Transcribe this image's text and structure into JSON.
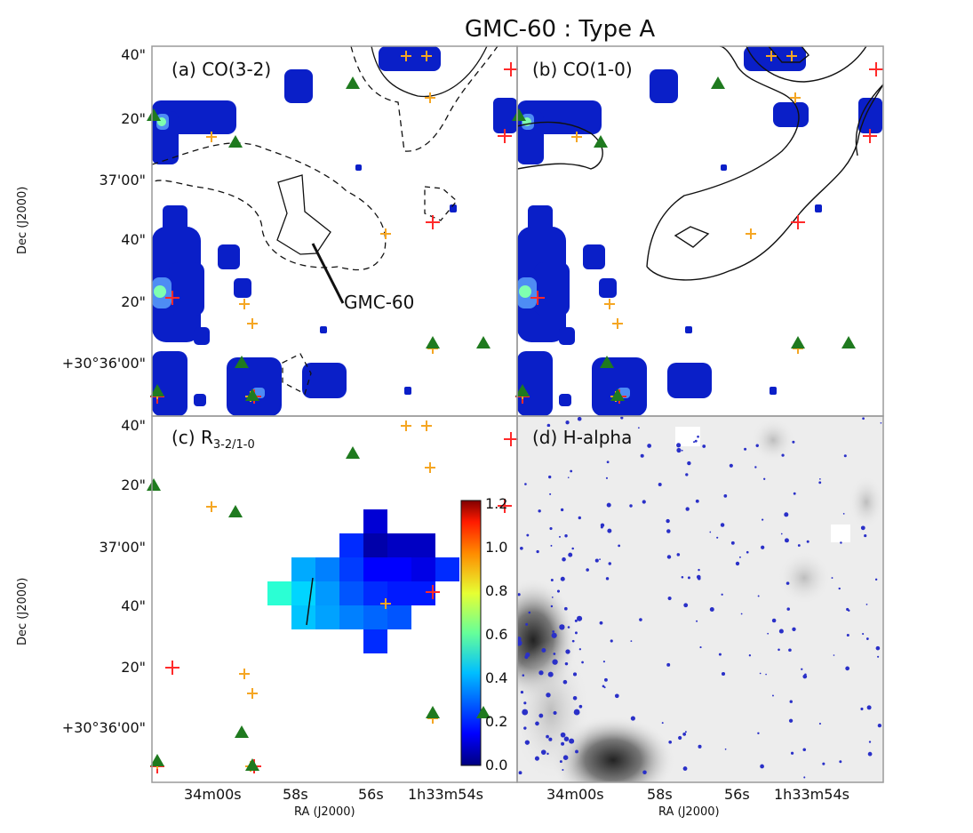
{
  "figure": {
    "title": "GMC-60 : Type A",
    "y_axis_label": "Dec (J2000)",
    "x_axis_label": "RA (J2000)",
    "y_ticks": [
      "40\"",
      "20\"",
      "37'00\"",
      "40\"",
      "20\"",
      "+30°36'00\""
    ],
    "x_ticks": [
      "34m00s",
      "58s",
      "56s",
      "1h33m54s"
    ]
  },
  "panels": [
    {
      "id": "a",
      "prefix": "(a) ",
      "label": "CO(3-2)",
      "sub": ""
    },
    {
      "id": "b",
      "prefix": "(b) ",
      "label": "CO(1-0)",
      "sub": ""
    },
    {
      "id": "c",
      "prefix": "(c) ",
      "label": "R",
      "sub": "3-2/1-0"
    },
    {
      "id": "d",
      "prefix": "(d) ",
      "label": "H-alpha",
      "sub": ""
    }
  ],
  "annotation": {
    "label": "GMC-60"
  },
  "colorbar": {
    "ticks": [
      "1.2",
      "1.0",
      "0.8",
      "0.6",
      "0.4",
      "0.2",
      "0.0"
    ],
    "range": [
      0.0,
      1.2
    ]
  },
  "colors": {
    "blue_map": "#0a1fc8",
    "dark_blue": "#00008f",
    "red_cross": "#ff2a2a",
    "orange_cross": "#f5a623",
    "green_triangle": "#1f7a1f",
    "panel_border": "#9a9a9a"
  },
  "ratio_map": {
    "values": [
      [
        null,
        null,
        null,
        null,
        0.1,
        null,
        null,
        null,
        null
      ],
      [
        null,
        null,
        null,
        0.2,
        0.05,
        0.08,
        0.08,
        null,
        null
      ],
      [
        null,
        0.35,
        0.3,
        0.22,
        0.15,
        0.15,
        0.12,
        0.2,
        null
      ],
      [
        0.5,
        0.4,
        0.33,
        0.25,
        0.2,
        0.18,
        0.18,
        null,
        null
      ],
      [
        null,
        0.38,
        0.34,
        0.3,
        0.27,
        0.25,
        null,
        null,
        null
      ],
      [
        null,
        null,
        null,
        null,
        0.2,
        null,
        null,
        null,
        null
      ]
    ]
  }
}
